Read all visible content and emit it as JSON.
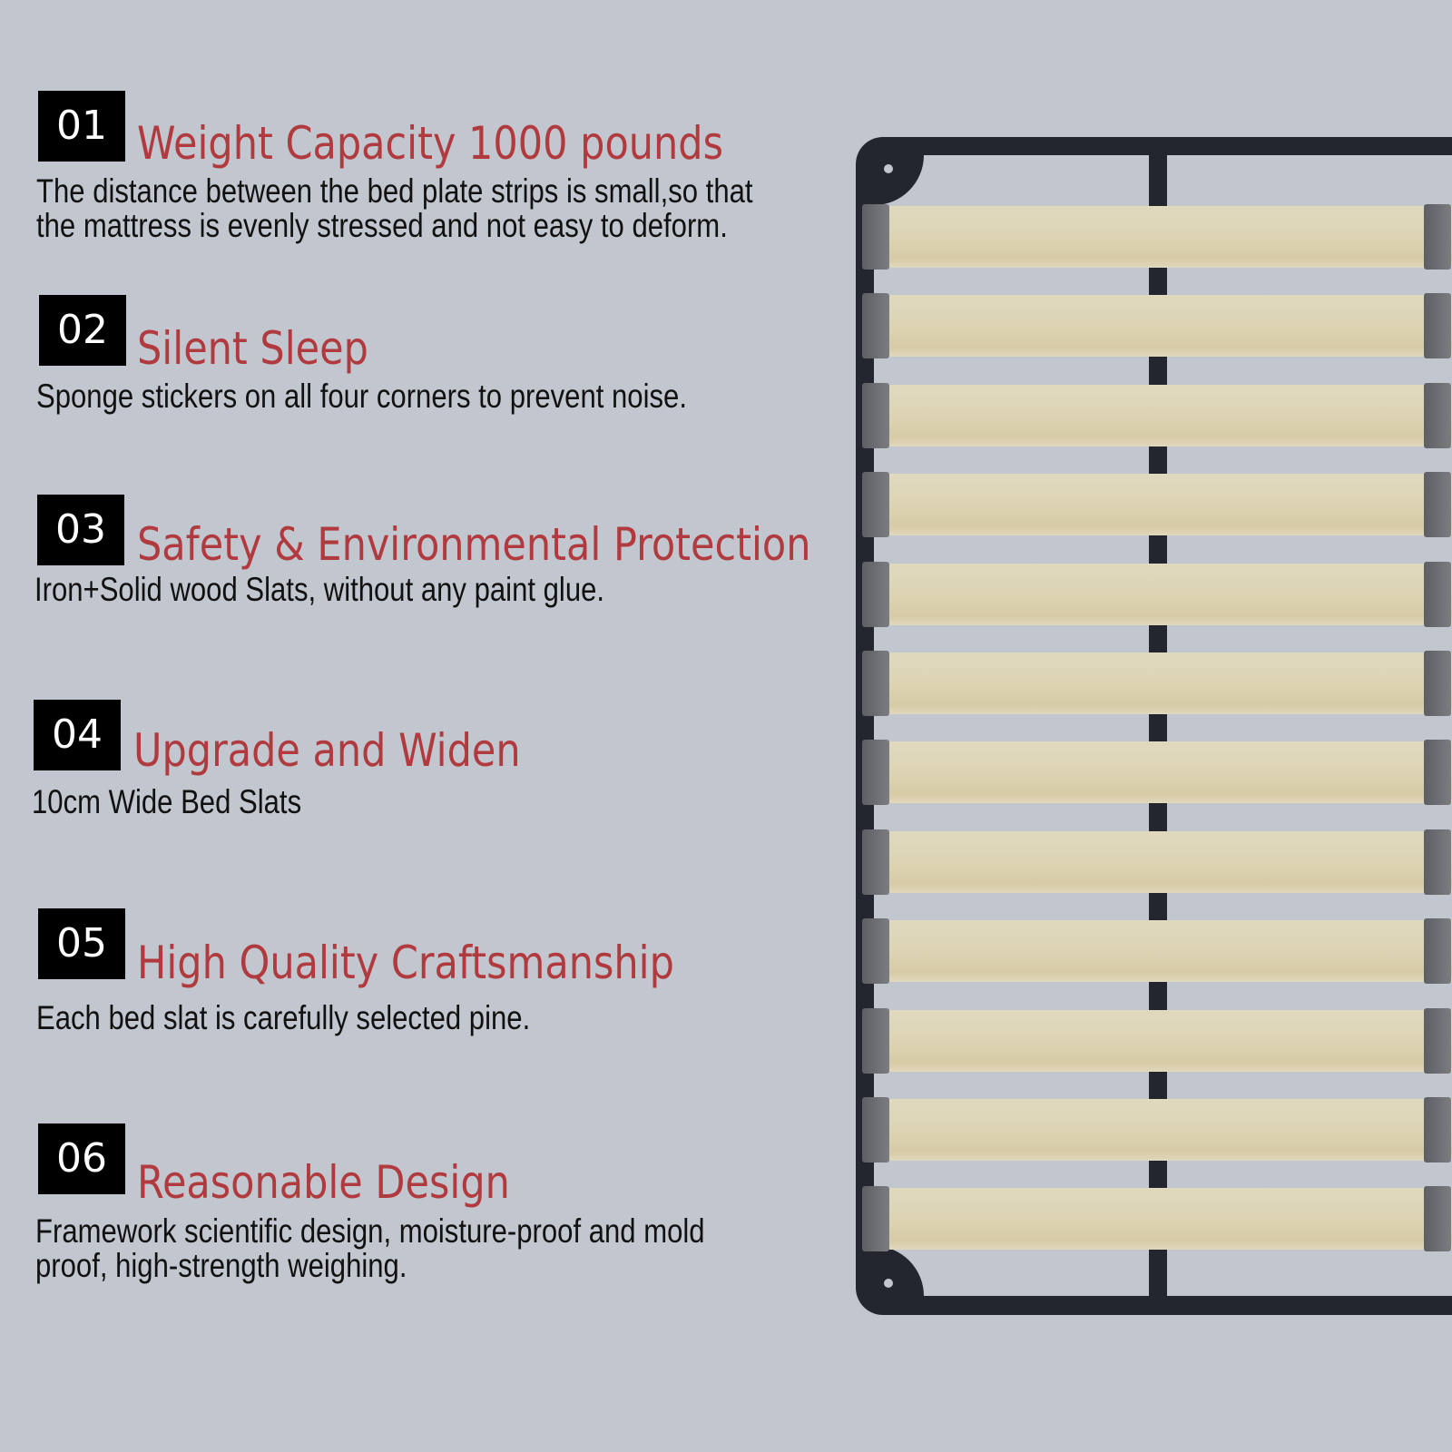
{
  "features": [
    {
      "number": "01",
      "title": "Weight Capacity 1000 pounds",
      "lines": [
        "The distance between the bed plate strips is small,so that",
        "the mattress is evenly stressed and not easy to deform."
      ]
    },
    {
      "number": "02",
      "title": "Silent Sleep",
      "lines": [
        "Sponge stickers on all four corners to prevent noise."
      ]
    },
    {
      "number": "03",
      "title": "Safety & Environmental Protection",
      "lines": [
        "Iron+Solid wood Slats, without any paint glue."
      ]
    },
    {
      "number": "04",
      "title": "Upgrade and Widen",
      "lines": [
        "10cm Wide Bed Slats"
      ]
    },
    {
      "number": "05",
      "title": "High Quality Craftsmanship",
      "lines": [
        "Each bed slat is carefully selected pine."
      ]
    },
    {
      "number": "06",
      "title": "Reasonable Design",
      "lines": [
        "Framework scientific design, moisture-proof and mold",
        "proof, high-strength weighing."
      ]
    }
  ],
  "colors": {
    "background": "#c2c6ce",
    "heading": "#b03a3e",
    "number_box": "#000000",
    "frame": "#23262f",
    "slat": "#ddd4b4"
  }
}
